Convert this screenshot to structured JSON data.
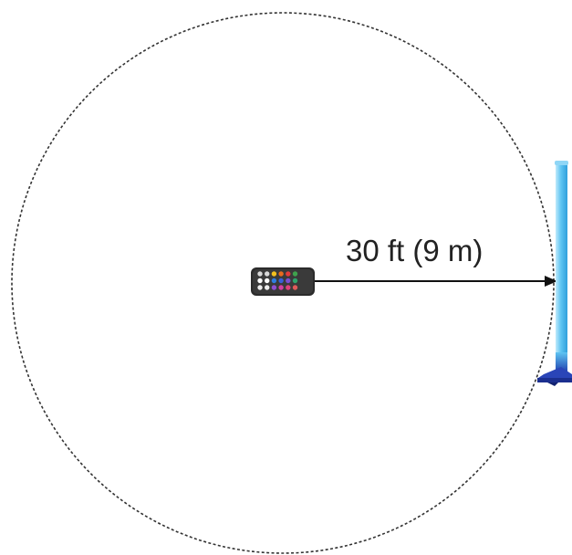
{
  "diagram": {
    "range_label": "30 ft (9 m)",
    "range_feet": 30,
    "range_meters": 9,
    "remote_control": {
      "icon": "remote-control-icon",
      "button_colors": [
        [
          "#d9d9d9",
          "#d9d9d9",
          "#f2c01e",
          "#e86a1f",
          "#e23b3b",
          "#3fa34d"
        ],
        [
          "#ffffff",
          "#ffffff",
          "#2e7de0",
          "#3a5fd9",
          "#7a4fd1",
          "#2ea36b"
        ],
        [
          "#eeeeee",
          "#eeeeee",
          "#8f4fd1",
          "#d23fa0",
          "#e0417a",
          "#e05a5a"
        ]
      ]
    },
    "light_tube": {
      "icon": "led-tube-light-icon",
      "color": "#5ec4f2"
    },
    "colors": {
      "circle": "#333333",
      "arrow": "#111111",
      "remote_body": "#2b2b2b"
    }
  }
}
